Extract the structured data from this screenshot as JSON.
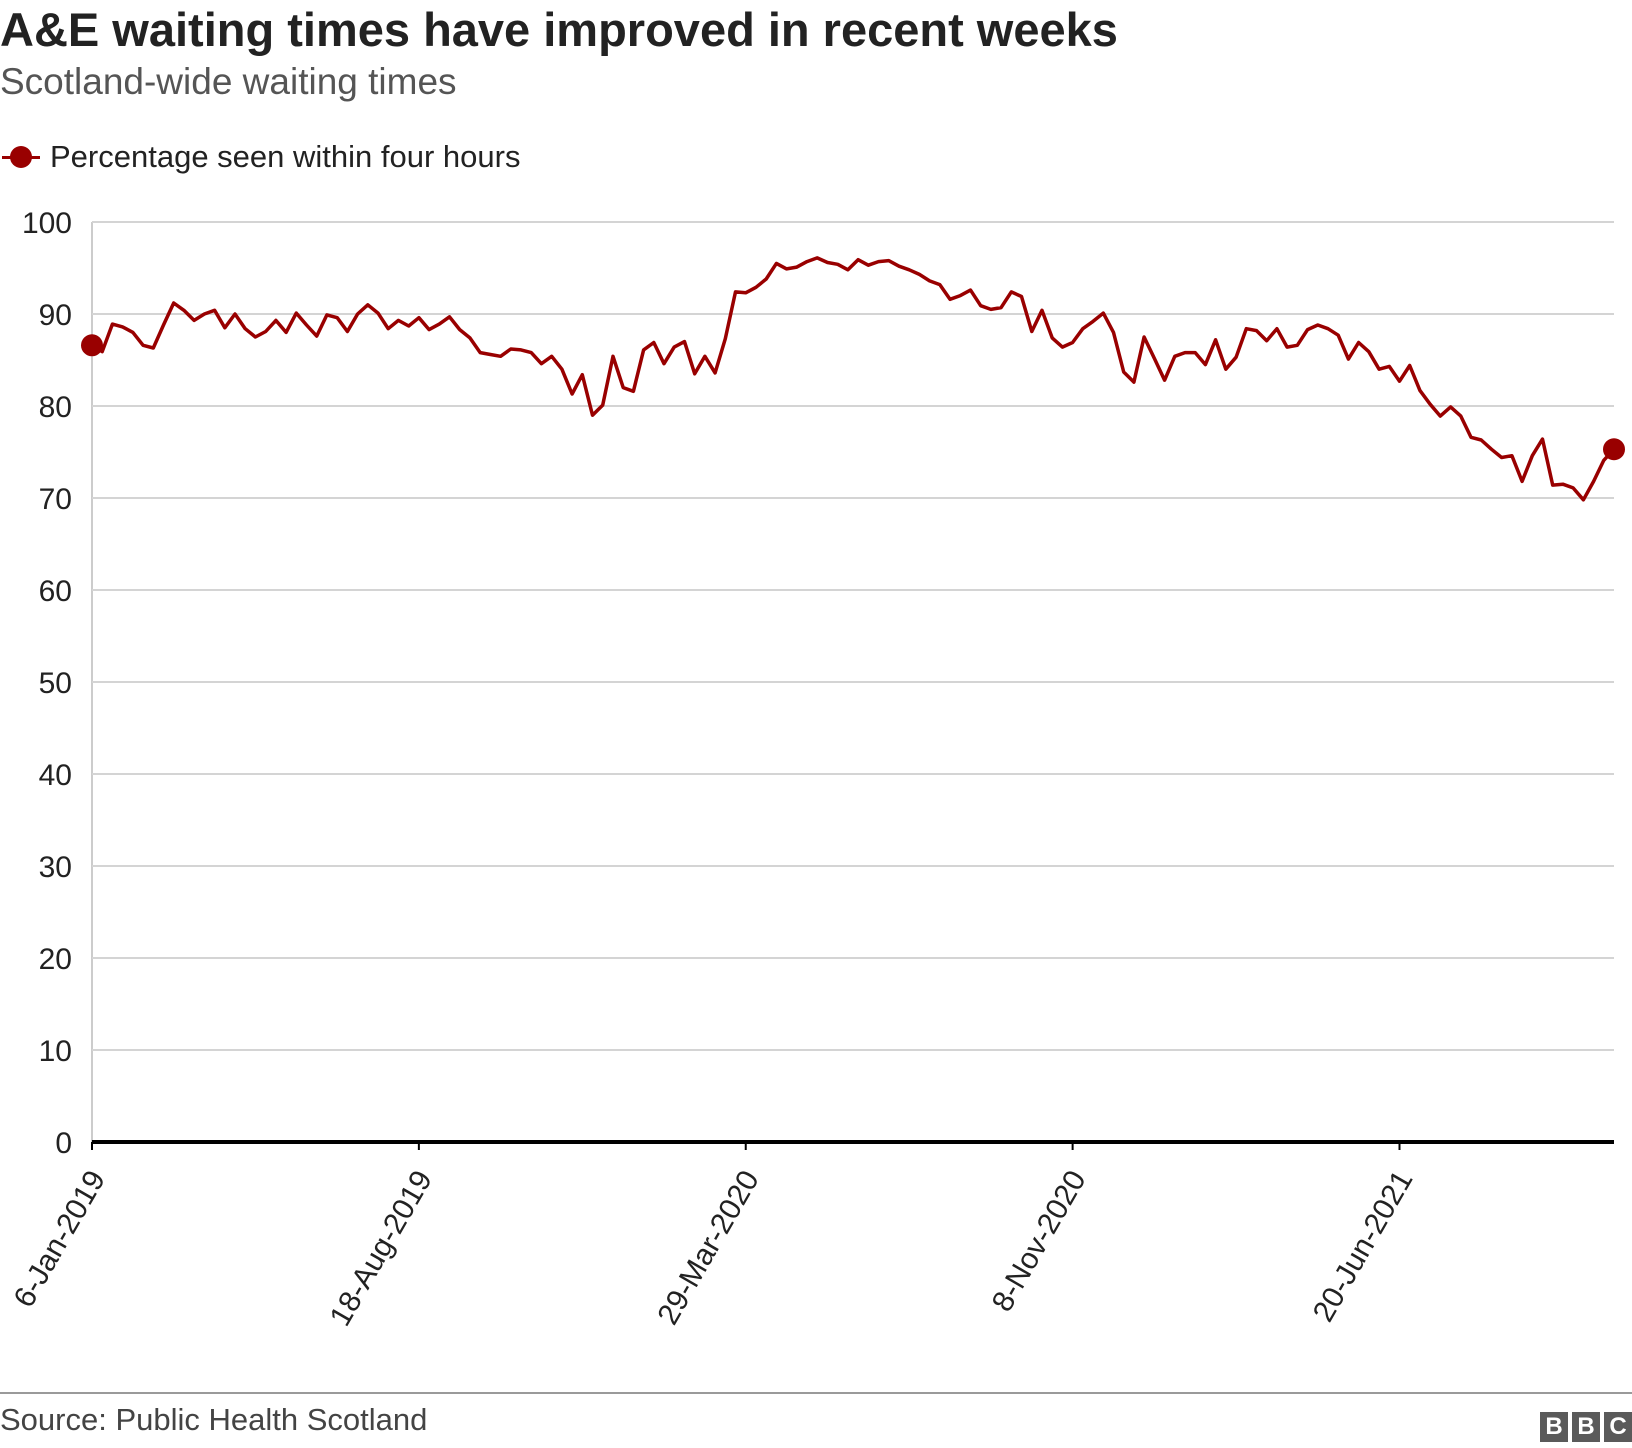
{
  "header": {
    "title": "A&E waiting times have improved in recent weeks",
    "subtitle": "Scotland-wide waiting times"
  },
  "legend": {
    "label": "Percentage seen within four hours"
  },
  "footer": {
    "source": "Source: Public Health Scotland",
    "logo": [
      "B",
      "B",
      "C"
    ]
  },
  "colors": {
    "series": "#990000",
    "grid": "#d4d4d4",
    "axis": "#000000",
    "text": "#222222"
  },
  "chart_data": {
    "type": "line",
    "title": "A&E waiting times have improved in recent weeks",
    "subtitle": "Scotland-wide waiting times",
    "xlabel": "",
    "ylabel": "",
    "ylim": [
      0,
      100
    ],
    "yticks": [
      0,
      10,
      20,
      30,
      40,
      50,
      60,
      70,
      80,
      90,
      100
    ],
    "x_start": "6-Jan-2019",
    "x_end": "14-Nov-2021",
    "xtick_labels": [
      "6-Jan-2019",
      "18-Aug-2019",
      "29-Mar-2020",
      "8-Nov-2020",
      "20-Jun-2021"
    ],
    "grid": true,
    "legend_position": "top-left",
    "endpoint_markers": true,
    "series": [
      {
        "name": "Percentage seen within four hours",
        "color": "#990000",
        "values": [
          86.6,
          85.9,
          88.9,
          88.6,
          88.0,
          86.6,
          86.3,
          88.8,
          91.2,
          90.4,
          89.3,
          90.0,
          90.4,
          88.5,
          90.0,
          88.4,
          87.5,
          88.1,
          89.3,
          88.0,
          90.1,
          88.8,
          87.6,
          89.9,
          89.6,
          88.1,
          90.0,
          91.0,
          90.1,
          88.4,
          89.3,
          88.7,
          89.6,
          88.3,
          88.9,
          89.7,
          88.3,
          87.4,
          85.8,
          85.6,
          85.4,
          86.2,
          86.1,
          85.8,
          84.6,
          85.4,
          84.0,
          81.3,
          83.4,
          79.0,
          80.1,
          85.4,
          82.0,
          81.6,
          86.1,
          86.9,
          84.6,
          86.4,
          87.0,
          83.5,
          85.4,
          83.6,
          87.3,
          92.4,
          92.3,
          92.9,
          93.8,
          95.5,
          94.9,
          95.1,
          95.7,
          96.1,
          95.6,
          95.4,
          94.8,
          95.9,
          95.3,
          95.7,
          95.8,
          95.2,
          94.8,
          94.3,
          93.6,
          93.2,
          91.6,
          92.0,
          92.6,
          90.9,
          90.5,
          90.7,
          92.4,
          91.9,
          88.1,
          90.4,
          87.4,
          86.4,
          86.9,
          88.4,
          89.2,
          90.1,
          88.0,
          83.7,
          82.6,
          87.5,
          85.2,
          82.8,
          85.4,
          85.8,
          85.8,
          84.5,
          87.2,
          84.0,
          85.3,
          88.4,
          88.2,
          87.1,
          88.4,
          86.4,
          86.6,
          88.3,
          88.8,
          88.4,
          87.7,
          85.1,
          86.9,
          85.9,
          84.0,
          84.3,
          82.7,
          84.4,
          81.7,
          80.2,
          78.9,
          79.9,
          78.9,
          76.6,
          76.3,
          75.3,
          74.4,
          74.6,
          71.8,
          74.6,
          76.4,
          71.4,
          71.5,
          71.1,
          69.8,
          71.8,
          74.1,
          75.3
        ]
      }
    ]
  }
}
